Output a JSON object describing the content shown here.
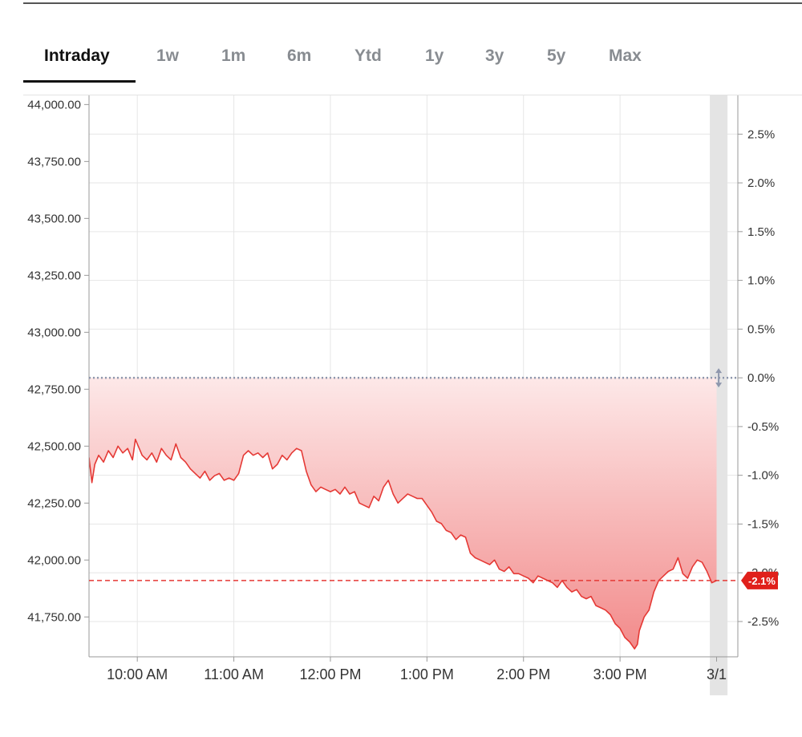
{
  "tabs": [
    {
      "label": "Intraday",
      "active": true
    },
    {
      "label": "1w",
      "active": false
    },
    {
      "label": "1m",
      "active": false
    },
    {
      "label": "6m",
      "active": false
    },
    {
      "label": "Ytd",
      "active": false
    },
    {
      "label": "1y",
      "active": false
    },
    {
      "label": "3y",
      "active": false
    },
    {
      "label": "5y",
      "active": false
    },
    {
      "label": "Max",
      "active": false
    }
  ],
  "colors": {
    "line": "#e53935",
    "fill_top": "#fde8e8",
    "fill_bottom": "#f28b8b",
    "reference_line": "#8e97ad",
    "badge": "#e0201b",
    "grid": "#e6e6e6"
  },
  "chart_data": {
    "type": "area",
    "x_axis": {
      "unit": "hours (24h clock)",
      "range": [
        9.5,
        16.22
      ],
      "ticks": [
        {
          "value": 10,
          "label": "10:00 AM"
        },
        {
          "value": 11,
          "label": "11:00 AM"
        },
        {
          "value": 12,
          "label": "12:00 PM"
        },
        {
          "value": 13,
          "label": "1:00 PM"
        },
        {
          "value": 14,
          "label": "2:00 PM"
        },
        {
          "value": 15,
          "label": "3:00 PM"
        },
        {
          "value": 16,
          "label": "3/1"
        }
      ]
    },
    "y_axis_left": {
      "range": [
        41575,
        44040
      ],
      "tick_values": [
        44000,
        43750,
        43500,
        43250,
        43000,
        42750,
        42500,
        42250,
        42000,
        41750
      ],
      "tick_labels": [
        "44,000.00",
        "43,750.00",
        "43,500.00",
        "43,250.00",
        "43,000.00",
        "42,750.00",
        "42,500.00",
        "42,250.00",
        "42,000.00",
        "41,750.00"
      ]
    },
    "y_axis_right": {
      "tick_labels": [
        "2.5%",
        "2.0%",
        "1.5%",
        "1.0%",
        "0.5%",
        "0.0%",
        "-0.5%",
        "-1.0%",
        "-1.5%",
        "-2.0%",
        "-2.5%"
      ],
      "tick_values_pct": [
        2.5,
        2.0,
        1.5,
        1.0,
        0.5,
        0.0,
        -0.5,
        -1.0,
        -1.5,
        -2.0,
        -2.5
      ]
    },
    "previous_close": 42800,
    "last_value": 41910,
    "last_change_label": "-2.1%",
    "grid": true,
    "series": [
      {
        "x": [
          9.5,
          9.53,
          9.56,
          9.6,
          9.65,
          9.7,
          9.75,
          9.8,
          9.85,
          9.9,
          9.95,
          9.98,
          10.0,
          10.05,
          10.1,
          10.15,
          10.2,
          10.25,
          10.3,
          10.35,
          10.4,
          10.45,
          10.5,
          10.55,
          10.6,
          10.65,
          10.7,
          10.75,
          10.8,
          10.85,
          10.9,
          10.95,
          11.0,
          11.05,
          11.1,
          11.15,
          11.2,
          11.25,
          11.3,
          11.35,
          11.4,
          11.45,
          11.5,
          11.55,
          11.6,
          11.65,
          11.7,
          11.75,
          11.8,
          11.85,
          11.9,
          11.95,
          12.0,
          12.05,
          12.1,
          12.15,
          12.2,
          12.25,
          12.3,
          12.35,
          12.4,
          12.45,
          12.5,
          12.55,
          12.6,
          12.65,
          12.7,
          12.75,
          12.8,
          12.85,
          12.9,
          12.95,
          13.0,
          13.05,
          13.1,
          13.15,
          13.2,
          13.25,
          13.3,
          13.35,
          13.4,
          13.45,
          13.5,
          13.55,
          13.6,
          13.65,
          13.7,
          13.75,
          13.8,
          13.85,
          13.9,
          13.95,
          14.0,
          14.05,
          14.1,
          14.15,
          14.2,
          14.25,
          14.3,
          14.35,
          14.4,
          14.45,
          14.5,
          14.55,
          14.6,
          14.65,
          14.7,
          14.75,
          14.8,
          14.85,
          14.9,
          14.95,
          15.0,
          15.05,
          15.1,
          15.15,
          15.18,
          15.2,
          15.25,
          15.3,
          15.35,
          15.4,
          15.45,
          15.5,
          15.55,
          15.6,
          15.65,
          15.7,
          15.75,
          15.8,
          15.85,
          15.9,
          15.95,
          16.0
        ],
        "y": [
          42450,
          42340,
          42420,
          42460,
          42430,
          42480,
          42450,
          42500,
          42470,
          42490,
          42440,
          42530,
          42510,
          42460,
          42440,
          42470,
          42430,
          42490,
          42460,
          42440,
          42510,
          42450,
          42430,
          42400,
          42380,
          42360,
          42390,
          42350,
          42370,
          42380,
          42350,
          42360,
          42350,
          42380,
          42460,
          42480,
          42460,
          42470,
          42450,
          42470,
          42400,
          42420,
          42460,
          42440,
          42470,
          42490,
          42480,
          42390,
          42330,
          42300,
          42320,
          42310,
          42300,
          42310,
          42290,
          42320,
          42290,
          42300,
          42250,
          42240,
          42230,
          42280,
          42260,
          42320,
          42350,
          42290,
          42250,
          42270,
          42290,
          42280,
          42270,
          42270,
          42240,
          42210,
          42170,
          42160,
          42130,
          42120,
          42090,
          42110,
          42100,
          42030,
          42010,
          42000,
          41990,
          41980,
          42000,
          41960,
          41950,
          41970,
          41940,
          41940,
          41930,
          41920,
          41900,
          41930,
          41920,
          41910,
          41900,
          41880,
          41910,
          41880,
          41860,
          41870,
          41840,
          41830,
          41840,
          41800,
          41790,
          41780,
          41760,
          41720,
          41700,
          41660,
          41640,
          41610,
          41630,
          41690,
          41750,
          41780,
          41860,
          41910,
          41930,
          41950,
          41960,
          42010,
          41940,
          41920,
          41970,
          42000,
          41990,
          41950,
          41900,
          41910
        ]
      }
    ]
  }
}
